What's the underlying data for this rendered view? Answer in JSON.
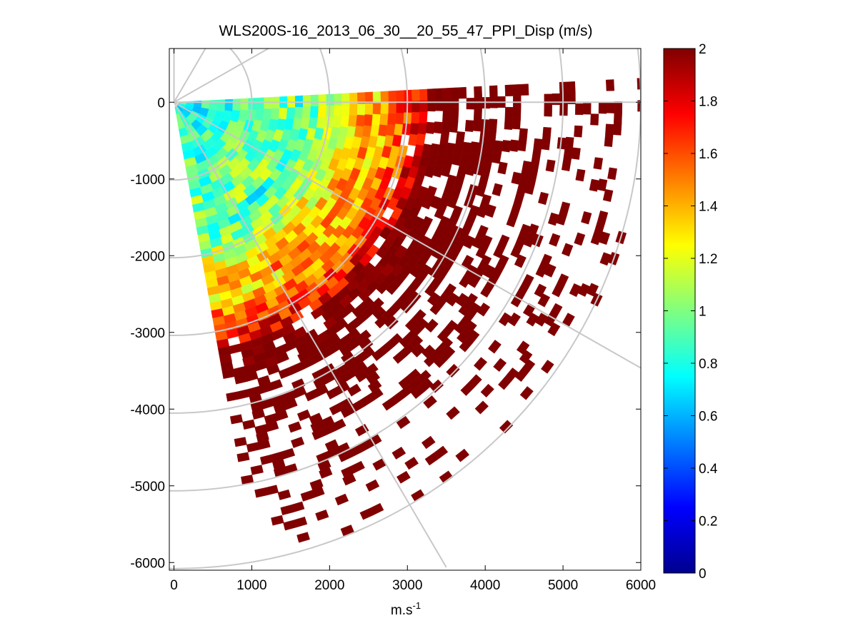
{
  "chart_data": {
    "type": "heatmap",
    "subtype": "polar-ppi-scan",
    "title": "WLS200S-16_2013_06_30__20_55_47_PPI_Disp (m/s)",
    "xlabel": "m.s",
    "xlabel_superscript": "-1",
    "ylabel": "",
    "xlim": [
      -60,
      6000
    ],
    "ylim": [
      -6100,
      700
    ],
    "xticks": [
      "0",
      "1000",
      "2000",
      "3000",
      "4000",
      "5000",
      "6000"
    ],
    "xtick_values": [
      0,
      1000,
      2000,
      3000,
      4000,
      5000,
      6000
    ],
    "yticks": [
      "0",
      "-1000",
      "-2000",
      "-3000",
      "-4000",
      "-5000",
      "-6000"
    ],
    "ytick_values": [
      0,
      -1000,
      -2000,
      -3000,
      -4000,
      -5000,
      -6000
    ],
    "polar_rings_m": [
      1000,
      2000,
      3000,
      4000,
      5000,
      6000
    ],
    "polar_spokes_deg": [
      0,
      -30,
      -60,
      30,
      60,
      90
    ],
    "scan_sector_deg": [
      -80,
      3
    ],
    "range_gate_m": 100,
    "colorbar": {
      "colormap": "jet",
      "range": [
        0,
        2
      ],
      "tick_labels": [
        "2",
        "1.8",
        "1.6",
        "1.4",
        "1.2",
        "1",
        "0.8",
        "0.6",
        "0.4",
        "0.2",
        "0"
      ],
      "tick_values": [
        2,
        1.8,
        1.6,
        1.4,
        1.2,
        1,
        0.8,
        0.6,
        0.4,
        0.2,
        0
      ]
    },
    "value_summary": {
      "near_range_m": 1500,
      "near_range_value": 0.8,
      "mid_range_m": 2500,
      "mid_range_value": 1.3,
      "far_range_value": 2.0,
      "missing_data": "white"
    }
  }
}
